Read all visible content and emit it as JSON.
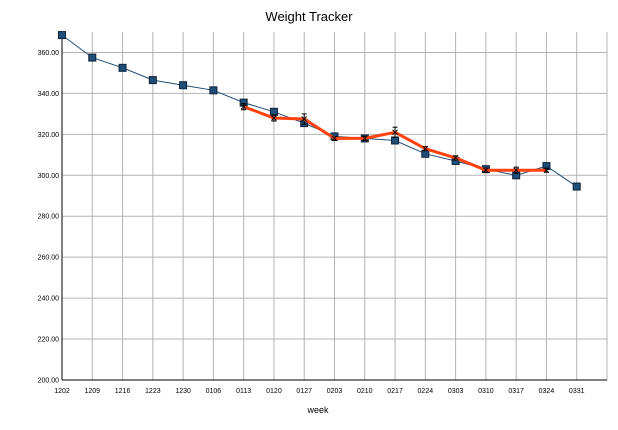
{
  "chart_data": {
    "type": "line",
    "title": "Weight Tracker",
    "xlabel": "week",
    "ylabel": "",
    "ylim": [
      200,
      370
    ],
    "yticks": [
      "200.00",
      "220.00",
      "240.00",
      "260.00",
      "280.00",
      "300.00",
      "320.00",
      "340.00",
      "360.00"
    ],
    "yticks_values": [
      200,
      220,
      240,
      260,
      280,
      300,
      320,
      340,
      360
    ],
    "categories": [
      "1202",
      "1209",
      "1216",
      "1223",
      "1230",
      "0106",
      "0113",
      "0120",
      "0127",
      "0203",
      "0210",
      "0217",
      "0224",
      "0303",
      "0310",
      "0317",
      "0324",
      "0331"
    ],
    "grid": true,
    "legend": "none",
    "series": [
      {
        "values": [
          368.5,
          357.5,
          352.5,
          346.5,
          344.0,
          341.5,
          335.5,
          331.0,
          325.5,
          319.0,
          318.0,
          317.0,
          310.5,
          307.0,
          303.0,
          300.0,
          304.5,
          294.5
        ],
        "color": "#1f4e79",
        "marker": "square"
      },
      {
        "values": [
          null,
          null,
          null,
          null,
          null,
          null,
          333.5,
          328.0,
          327.5,
          318.0,
          318.0,
          321.0,
          313.0,
          308.5,
          302.5,
          302.5,
          302.5,
          null
        ],
        "color": "#ff420e",
        "marker": "x",
        "error": [
          null,
          null,
          null,
          null,
          null,
          null,
          1.5,
          1.5,
          2.5,
          1.0,
          1.0,
          2.5,
          1.0,
          1.0,
          1.0,
          1.5,
          1.0,
          null
        ]
      }
    ]
  }
}
